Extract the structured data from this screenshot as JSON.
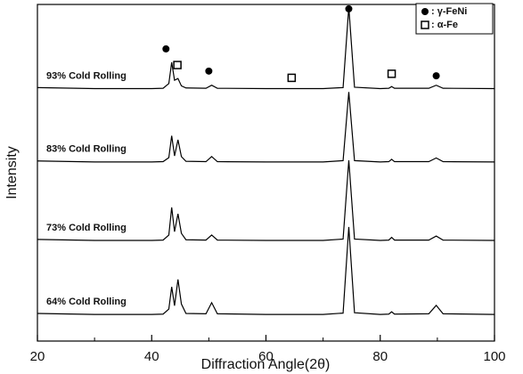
{
  "chart_data": {
    "type": "line",
    "xlabel": "Diffraction Angle(2θ)",
    "ylabel": "Intensity",
    "xlim": [
      20,
      100
    ],
    "xticks": [
      20,
      40,
      60,
      80,
      100
    ],
    "ylim": [
      0,
      100
    ],
    "x": [
      20,
      30,
      40,
      42,
      43,
      43.5,
      44,
      44.6,
      45.2,
      46,
      49.5,
      50.5,
      51.5,
      60,
      70,
      73.5,
      74.5,
      75.5,
      80,
      81.5,
      82,
      82.5,
      88.5,
      89.8,
      91,
      100
    ],
    "series": [
      {
        "name": "93% Cold Rolling",
        "color": "#000000",
        "values": [
          75.3,
          75.0,
          75.0,
          75.1,
          76.5,
          82.8,
          77.5,
          78.0,
          75.8,
          75.2,
          75.1,
          76.0,
          75.1,
          75.0,
          75.0,
          75.3,
          99.2,
          75.4,
          75.0,
          75.1,
          75.6,
          75.1,
          75.1,
          76.0,
          75.1,
          75.0
        ]
      },
      {
        "name": "83% Cold Rolling",
        "color": "#000000",
        "values": [
          53.5,
          53.2,
          53.2,
          53.3,
          54.5,
          61.0,
          55.0,
          59.8,
          54.8,
          53.4,
          53.3,
          54.8,
          53.3,
          53.2,
          53.2,
          53.6,
          74.0,
          53.6,
          53.2,
          53.3,
          54.0,
          53.3,
          53.3,
          54.4,
          53.3,
          53.2
        ]
      },
      {
        "name": "73% Cold Rolling",
        "color": "#000000",
        "values": [
          30.2,
          29.9,
          29.9,
          30.0,
          31.5,
          39.7,
          32.5,
          37.8,
          32.0,
          30.1,
          30.0,
          31.5,
          30.0,
          29.9,
          29.9,
          30.3,
          53.7,
          30.3,
          29.9,
          30.0,
          30.8,
          30.0,
          30.0,
          31.2,
          30.0,
          29.9
        ]
      },
      {
        "name": "64% Cold Rolling",
        "color": "#000000",
        "values": [
          8.2,
          7.9,
          7.9,
          8.0,
          9.5,
          16.1,
          10.5,
          18.3,
          11.0,
          8.2,
          8.1,
          11.4,
          8.1,
          7.9,
          7.9,
          8.3,
          33.9,
          8.4,
          7.9,
          8.0,
          8.7,
          8.0,
          8.1,
          10.6,
          8.1,
          7.9
        ]
      }
    ],
    "peak_markers": [
      {
        "label": ": γ-FeNi",
        "symbol": "circle",
        "points": [
          {
            "x": 42.5,
            "y": 86.8
          },
          {
            "x": 50,
            "y": 80.2
          },
          {
            "x": 74.5,
            "y": 98.7
          },
          {
            "x": 89.8,
            "y": 78.8
          }
        ]
      },
      {
        "label": ": α-Fe",
        "symbol": "square",
        "points": [
          {
            "x": 44.5,
            "y": 82
          },
          {
            "x": 64.5,
            "y": 78.2
          },
          {
            "x": 82,
            "y": 79.4
          }
        ]
      }
    ],
    "grid": false
  }
}
